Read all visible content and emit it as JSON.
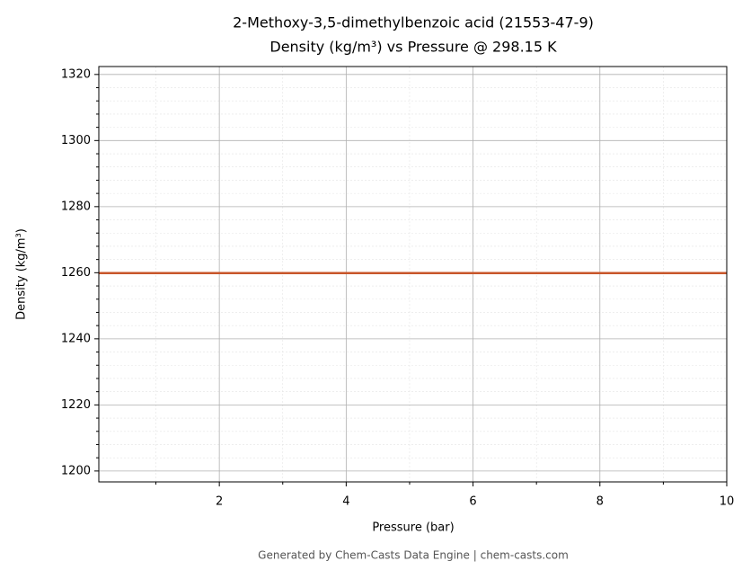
{
  "chart_data": {
    "type": "line",
    "title": "2-Methoxy-3,5-dimethylbenzoic acid (21553-47-9)",
    "subtitle": "Density (kg/m³) vs Pressure @ 298.15 K",
    "x_label": "Pressure (bar)",
    "y_label": "Density (kg/m³)",
    "footer": "Generated by Chem-Casts Data Engine | chem-casts.com",
    "x": [
      0.1,
      10
    ],
    "series": [
      {
        "name": "Density",
        "color": "#c8562a",
        "values": [
          1259.9,
          1259.9
        ]
      }
    ],
    "xlim": [
      0.1,
      10
    ],
    "ylim": [
      1196.7,
      1322.4
    ],
    "xticks": [
      2,
      4,
      6,
      8,
      10
    ],
    "yticks": [
      1200,
      1220,
      1240,
      1260,
      1280,
      1300,
      1320
    ],
    "xminorticks": [
      1,
      3,
      5,
      7,
      9
    ],
    "yminorticks": [
      1204,
      1208,
      1212,
      1216,
      1224,
      1228,
      1232,
      1236,
      1244,
      1248,
      1252,
      1256,
      1264,
      1268,
      1272,
      1276,
      1284,
      1288,
      1292,
      1296,
      1304,
      1308,
      1312,
      1316
    ],
    "grid": true
  }
}
